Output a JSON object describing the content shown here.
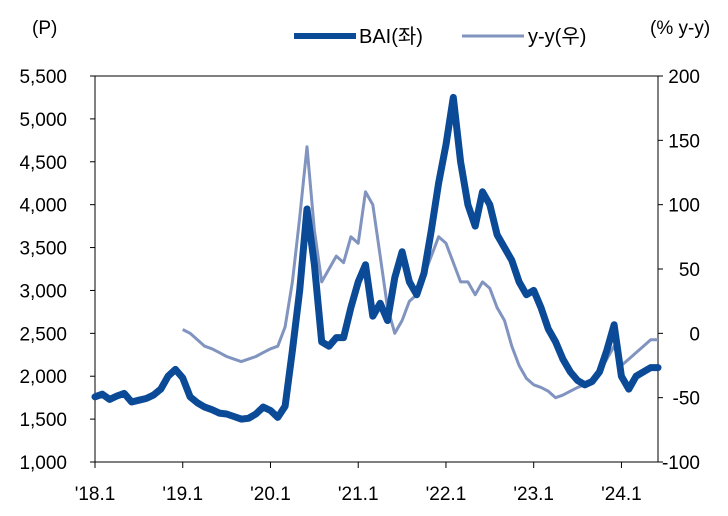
{
  "chart_data": {
    "type": "line",
    "left_unit": "(P)",
    "right_unit": "(% y-y)",
    "x_ticks": [
      "'18.1",
      "'19.1",
      "'20.1",
      "'21.1",
      "'22.1",
      "'23.1",
      "'24.1"
    ],
    "x_range": [
      "2018-01",
      "2024-06"
    ],
    "y_left": {
      "ylim": [
        1000,
        5500
      ],
      "ticks": [
        "1,000",
        "1,500",
        "2,000",
        "2,500",
        "3,000",
        "3,500",
        "4,000",
        "4,500",
        "5,000",
        "5,500"
      ]
    },
    "y_right": {
      "ylim": [
        -100,
        200
      ],
      "ticks": [
        "-100",
        "-50",
        "0",
        "50",
        "100",
        "150",
        "200"
      ]
    },
    "grid": false,
    "legend_position": "top",
    "colors": {
      "bai": "#0b4a96",
      "yy": "#8094bf"
    },
    "series": [
      {
        "name": "BAI(좌)",
        "axis": "left",
        "points": [
          [
            "2018-01",
            1760
          ],
          [
            "2018-02",
            1790
          ],
          [
            "2018-03",
            1730
          ],
          [
            "2018-04",
            1770
          ],
          [
            "2018-05",
            1800
          ],
          [
            "2018-06",
            1700
          ],
          [
            "2018-07",
            1720
          ],
          [
            "2018-08",
            1740
          ],
          [
            "2018-09",
            1780
          ],
          [
            "2018-10",
            1850
          ],
          [
            "2018-11",
            2000
          ],
          [
            "2018-12",
            2080
          ],
          [
            "2019-01",
            1980
          ],
          [
            "2019-02",
            1760
          ],
          [
            "2019-03",
            1690
          ],
          [
            "2019-04",
            1640
          ],
          [
            "2019-05",
            1610
          ],
          [
            "2019-06",
            1570
          ],
          [
            "2019-07",
            1560
          ],
          [
            "2019-08",
            1530
          ],
          [
            "2019-09",
            1500
          ],
          [
            "2019-10",
            1510
          ],
          [
            "2019-11",
            1560
          ],
          [
            "2019-12",
            1640
          ],
          [
            "2020-01",
            1600
          ],
          [
            "2020-02",
            1520
          ],
          [
            "2020-03",
            1650
          ],
          [
            "2020-04",
            2300
          ],
          [
            "2020-05",
            3000
          ],
          [
            "2020-06",
            3950
          ],
          [
            "2020-07",
            3300
          ],
          [
            "2020-08",
            2400
          ],
          [
            "2020-09",
            2350
          ],
          [
            "2020-10",
            2450
          ],
          [
            "2020-11",
            2450
          ],
          [
            "2020-12",
            2800
          ],
          [
            "2021-01",
            3100
          ],
          [
            "2021-02",
            3300
          ],
          [
            "2021-03",
            2700
          ],
          [
            "2021-04",
            2850
          ],
          [
            "2021-05",
            2650
          ],
          [
            "2021-06",
            3150
          ],
          [
            "2021-07",
            3450
          ],
          [
            "2021-08",
            3100
          ],
          [
            "2021-09",
            2950
          ],
          [
            "2021-10",
            3200
          ],
          [
            "2021-11",
            3700
          ],
          [
            "2021-12",
            4250
          ],
          [
            "2022-01",
            4700
          ],
          [
            "2022-02",
            5250
          ],
          [
            "2022-03",
            4500
          ],
          [
            "2022-04",
            4000
          ],
          [
            "2022-05",
            3750
          ],
          [
            "2022-06",
            4150
          ],
          [
            "2022-07",
            4000
          ],
          [
            "2022-08",
            3650
          ],
          [
            "2022-09",
            3500
          ],
          [
            "2022-10",
            3350
          ],
          [
            "2022-11",
            3100
          ],
          [
            "2022-12",
            2950
          ],
          [
            "2023-01",
            3000
          ],
          [
            "2023-02",
            2800
          ],
          [
            "2023-03",
            2550
          ],
          [
            "2023-04",
            2400
          ],
          [
            "2023-05",
            2200
          ],
          [
            "2023-06",
            2050
          ],
          [
            "2023-07",
            1950
          ],
          [
            "2023-08",
            1900
          ],
          [
            "2023-09",
            1940
          ],
          [
            "2023-10",
            2050
          ],
          [
            "2023-11",
            2300
          ],
          [
            "2023-12",
            2600
          ],
          [
            "2024-01",
            2000
          ],
          [
            "2024-02",
            1850
          ],
          [
            "2024-03",
            2000
          ],
          [
            "2024-04",
            2050
          ],
          [
            "2024-05",
            2100
          ],
          [
            "2024-06",
            2100
          ]
        ]
      },
      {
        "name": "y-y(우)",
        "axis": "right",
        "points": [
          [
            "2019-01",
            3
          ],
          [
            "2019-02",
            0
          ],
          [
            "2019-03",
            -5
          ],
          [
            "2019-04",
            -10
          ],
          [
            "2019-05",
            -12
          ],
          [
            "2019-06",
            -15
          ],
          [
            "2019-07",
            -18
          ],
          [
            "2019-08",
            -20
          ],
          [
            "2019-09",
            -22
          ],
          [
            "2019-10",
            -20
          ],
          [
            "2019-11",
            -18
          ],
          [
            "2019-12",
            -15
          ],
          [
            "2020-01",
            -12
          ],
          [
            "2020-02",
            -10
          ],
          [
            "2020-03",
            5
          ],
          [
            "2020-04",
            40
          ],
          [
            "2020-05",
            90
          ],
          [
            "2020-06",
            145
          ],
          [
            "2020-07",
            80
          ],
          [
            "2020-08",
            40
          ],
          [
            "2020-09",
            50
          ],
          [
            "2020-10",
            60
          ],
          [
            "2020-11",
            55
          ],
          [
            "2020-12",
            75
          ],
          [
            "2021-01",
            70
          ],
          [
            "2021-02",
            110
          ],
          [
            "2021-03",
            100
          ],
          [
            "2021-04",
            60
          ],
          [
            "2021-05",
            20
          ],
          [
            "2021-06",
            0
          ],
          [
            "2021-07",
            10
          ],
          [
            "2021-08",
            25
          ],
          [
            "2021-09",
            30
          ],
          [
            "2021-10",
            45
          ],
          [
            "2021-11",
            60
          ],
          [
            "2021-12",
            75
          ],
          [
            "2022-01",
            70
          ],
          [
            "2022-02",
            55
          ],
          [
            "2022-03",
            40
          ],
          [
            "2022-04",
            40
          ],
          [
            "2022-05",
            30
          ],
          [
            "2022-06",
            40
          ],
          [
            "2022-07",
            35
          ],
          [
            "2022-08",
            20
          ],
          [
            "2022-09",
            10
          ],
          [
            "2022-10",
            -10
          ],
          [
            "2022-11",
            -25
          ],
          [
            "2022-12",
            -35
          ],
          [
            "2023-01",
            -40
          ],
          [
            "2023-02",
            -42
          ],
          [
            "2023-03",
            -45
          ],
          [
            "2023-04",
            -50
          ],
          [
            "2023-05",
            -48
          ],
          [
            "2023-06",
            -45
          ],
          [
            "2023-07",
            -42
          ],
          [
            "2023-08",
            -40
          ],
          [
            "2023-09",
            -38
          ],
          [
            "2023-10",
            -30
          ],
          [
            "2023-11",
            -20
          ],
          [
            "2023-12",
            -10
          ],
          [
            "2024-01",
            -25
          ],
          [
            "2024-02",
            -20
          ],
          [
            "2024-03",
            -15
          ],
          [
            "2024-04",
            -10
          ],
          [
            "2024-05",
            -5
          ],
          [
            "2024-06",
            -5
          ]
        ]
      }
    ]
  }
}
